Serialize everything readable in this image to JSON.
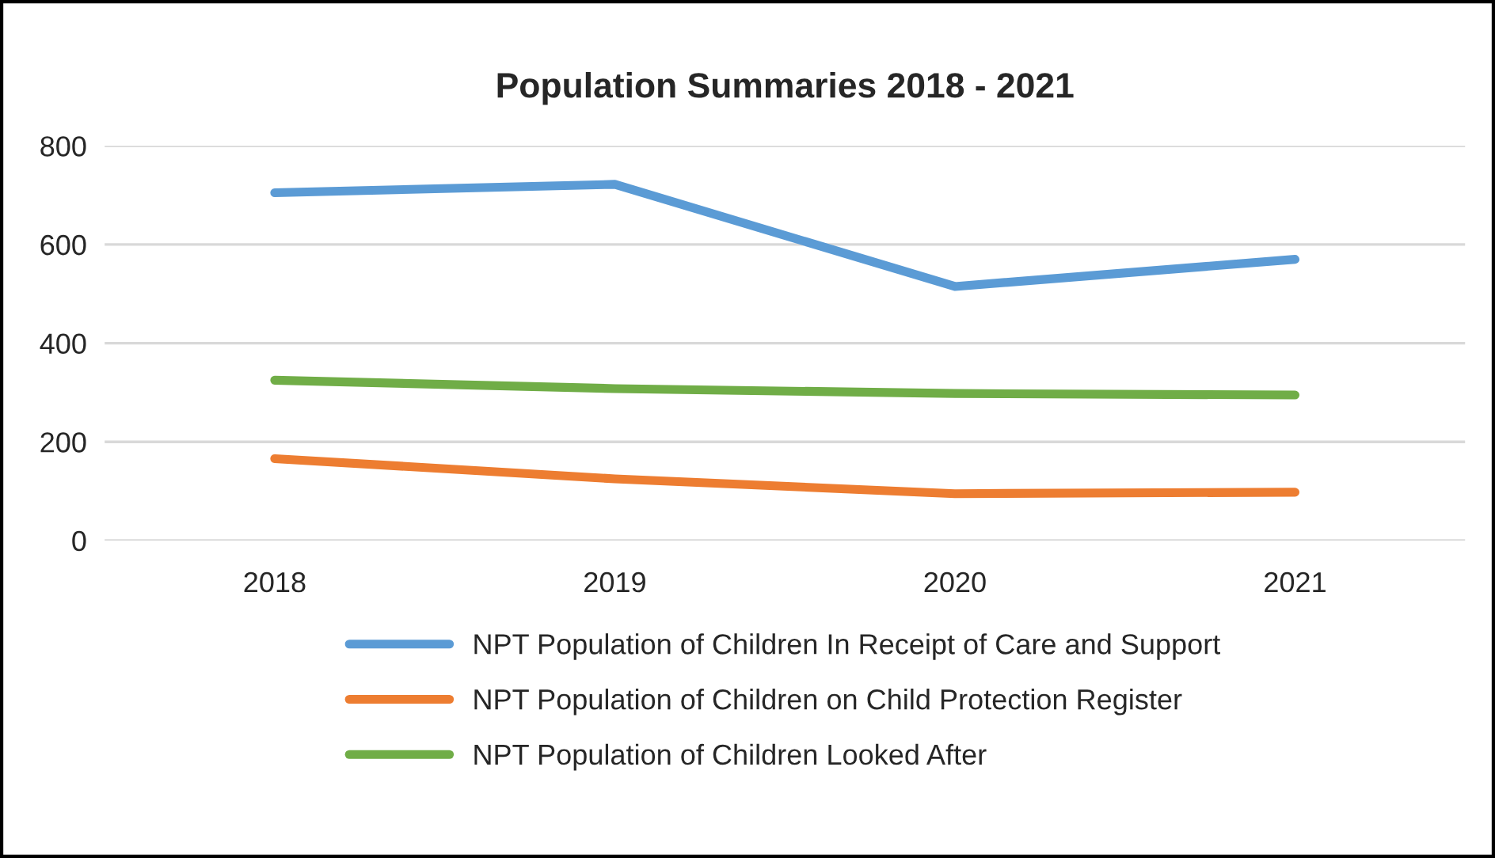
{
  "chart_data": {
    "type": "line",
    "title": "Population Summaries 2018 - 2021",
    "categories": [
      "2018",
      "2019",
      "2020",
      "2021"
    ],
    "series": [
      {
        "name": "NPT Population of Children In Receipt of Care and Support",
        "color": "#5b9bd5",
        "values": [
          705,
          722,
          515,
          570
        ]
      },
      {
        "name": "NPT Population of Children on Child Protection Register",
        "color": "#ed7d31",
        "values": [
          166,
          125,
          95,
          98
        ]
      },
      {
        "name": "NPT Population of Children Looked After",
        "color": "#70ad47",
        "values": [
          325,
          308,
          298,
          295
        ]
      }
    ],
    "ylim": [
      0,
      800
    ],
    "yticks": [
      0,
      200,
      400,
      600,
      800
    ],
    "grid": "y",
    "legend": "bottom",
    "marker": "none",
    "line_style": "solid"
  }
}
